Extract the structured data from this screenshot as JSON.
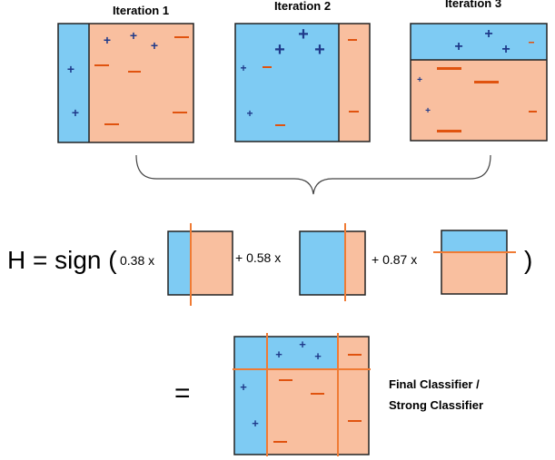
{
  "colors": {
    "blue_region": "#7ecbf3",
    "salmon_region": "#f9bf9f",
    "plus_sign": "#1f3a8a",
    "minus_sign": "#e0530f",
    "divider_line": "#f07b34",
    "border": "#222222"
  },
  "iterations": [
    {
      "title": "Iteration 1"
    },
    {
      "title": "Iteration 2"
    },
    {
      "title": "Iteration 3"
    }
  ],
  "formula": {
    "prefix": "H = sign (",
    "weights": [
      "0.38 x",
      "+ 0.58 x",
      "+ 0.87 x"
    ],
    "closing_paren": ")"
  },
  "result": {
    "equals": "=",
    "label_line1": "Final Classifier /",
    "label_line2": "Strong Classifier"
  },
  "signs": {
    "plus": "+",
    "minus": "—"
  }
}
